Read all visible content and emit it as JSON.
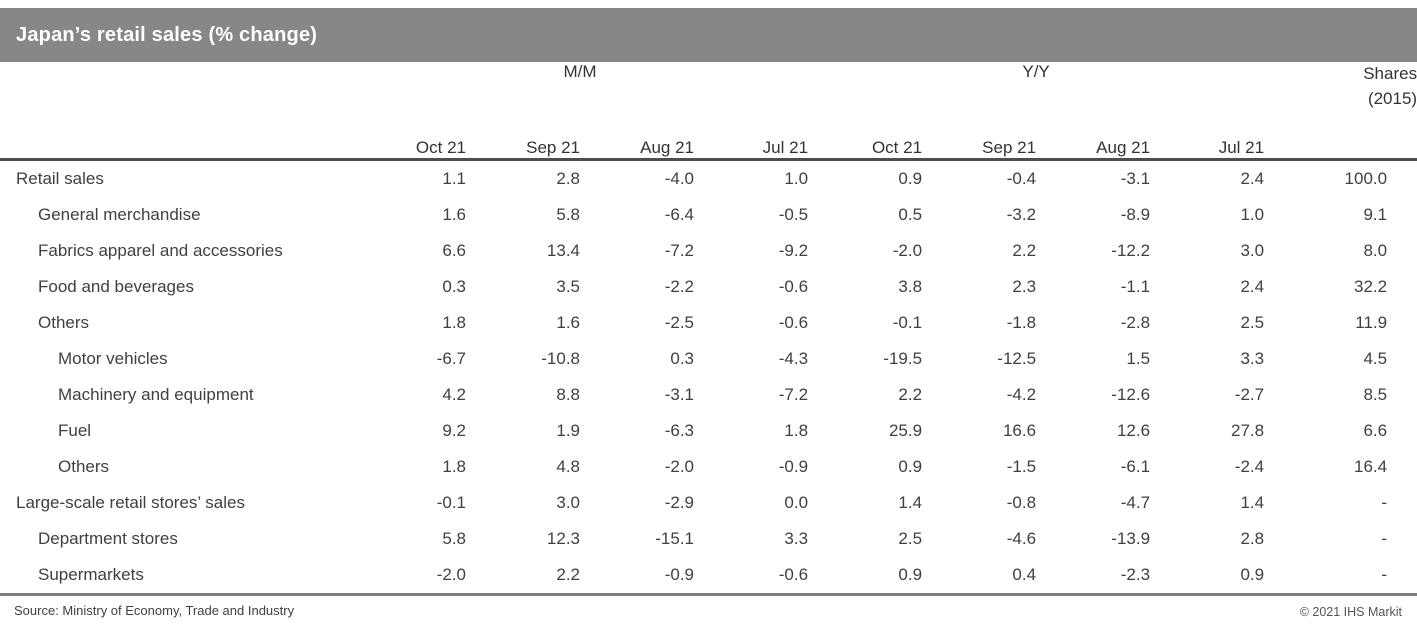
{
  "page": {
    "title": "Japan’s retail sales (% change)"
  },
  "colors": {
    "title_bar_bg": "#878787",
    "title_text": "#ffffff",
    "body_text": "#404040",
    "header_rule": "#4d4d4d",
    "bottom_rule": "#7f7f7f"
  },
  "chart_data": {
    "type": "table",
    "title": "Japan’s retail sales (% change)",
    "column_groups": [
      {
        "label": "M/M",
        "span": 4
      },
      {
        "label": "Y/Y",
        "span": 4
      },
      {
        "label": "Shares (2015)",
        "span": 1
      }
    ],
    "shares_header": [
      "Shares",
      "(2015)"
    ],
    "columns": [
      "Oct 21",
      "Sep 21",
      "Aug 21",
      "Jul 21",
      "Oct 21",
      "Sep 21",
      "Aug 21",
      "Jul 21"
    ],
    "rows": [
      {
        "label": "Retail sales",
        "indent": 0,
        "values": [
          "1.1",
          "2.8",
          "-4.0",
          "1.0",
          "0.9",
          "-0.4",
          "-3.1",
          "2.4",
          "100.0"
        ]
      },
      {
        "label": "General merchandise",
        "indent": 1,
        "values": [
          "1.6",
          "5.8",
          "-6.4",
          "-0.5",
          "0.5",
          "-3.2",
          "-8.9",
          "1.0",
          "9.1"
        ]
      },
      {
        "label": "Fabrics apparel and accessories",
        "indent": 1,
        "values": [
          "6.6",
          "13.4",
          "-7.2",
          "-9.2",
          "-2.0",
          "2.2",
          "-12.2",
          "3.0",
          "8.0"
        ]
      },
      {
        "label": "Food and beverages",
        "indent": 1,
        "values": [
          "0.3",
          "3.5",
          "-2.2",
          "-0.6",
          "3.8",
          "2.3",
          "-1.1",
          "2.4",
          "32.2"
        ]
      },
      {
        "label": "Others",
        "indent": 1,
        "values": [
          "1.8",
          "1.6",
          "-2.5",
          "-0.6",
          "-0.1",
          "-1.8",
          "-2.8",
          "2.5",
          "11.9"
        ]
      },
      {
        "label": "Motor vehicles",
        "indent": 2,
        "values": [
          "-6.7",
          "-10.8",
          "0.3",
          "-4.3",
          "-19.5",
          "-12.5",
          "1.5",
          "3.3",
          "4.5"
        ]
      },
      {
        "label": "Machinery and equipment",
        "indent": 2,
        "values": [
          "4.2",
          "8.8",
          "-3.1",
          "-7.2",
          "2.2",
          "-4.2",
          "-12.6",
          "-2.7",
          "8.5"
        ]
      },
      {
        "label": "Fuel",
        "indent": 2,
        "values": [
          "9.2",
          "1.9",
          "-6.3",
          "1.8",
          "25.9",
          "16.6",
          "12.6",
          "27.8",
          "6.6"
        ]
      },
      {
        "label": "Others",
        "indent": 2,
        "values": [
          "1.8",
          "4.8",
          "-2.0",
          "-0.9",
          "0.9",
          "-1.5",
          "-6.1",
          "-2.4",
          "16.4"
        ]
      },
      {
        "label": "Large-scale retail stores’ sales",
        "indent": 0,
        "values": [
          "-0.1",
          "3.0",
          "-2.9",
          "0.0",
          "1.4",
          "-0.8",
          "-4.7",
          "1.4",
          "-"
        ]
      },
      {
        "label": "Department stores",
        "indent": 1,
        "values": [
          "5.8",
          "12.3",
          "-15.1",
          "3.3",
          "2.5",
          "-4.6",
          "-13.9",
          "2.8",
          "-"
        ]
      },
      {
        "label": "Supermarkets",
        "indent": 1,
        "values": [
          "-2.0",
          "2.2",
          "-0.9",
          "-0.6",
          "0.9",
          "0.4",
          "-2.3",
          "0.9",
          "-"
        ]
      }
    ]
  },
  "footer": {
    "source": "Source: Ministry of Economy, Trade and Industry",
    "copyright": "© 2021 IHS Markit"
  }
}
